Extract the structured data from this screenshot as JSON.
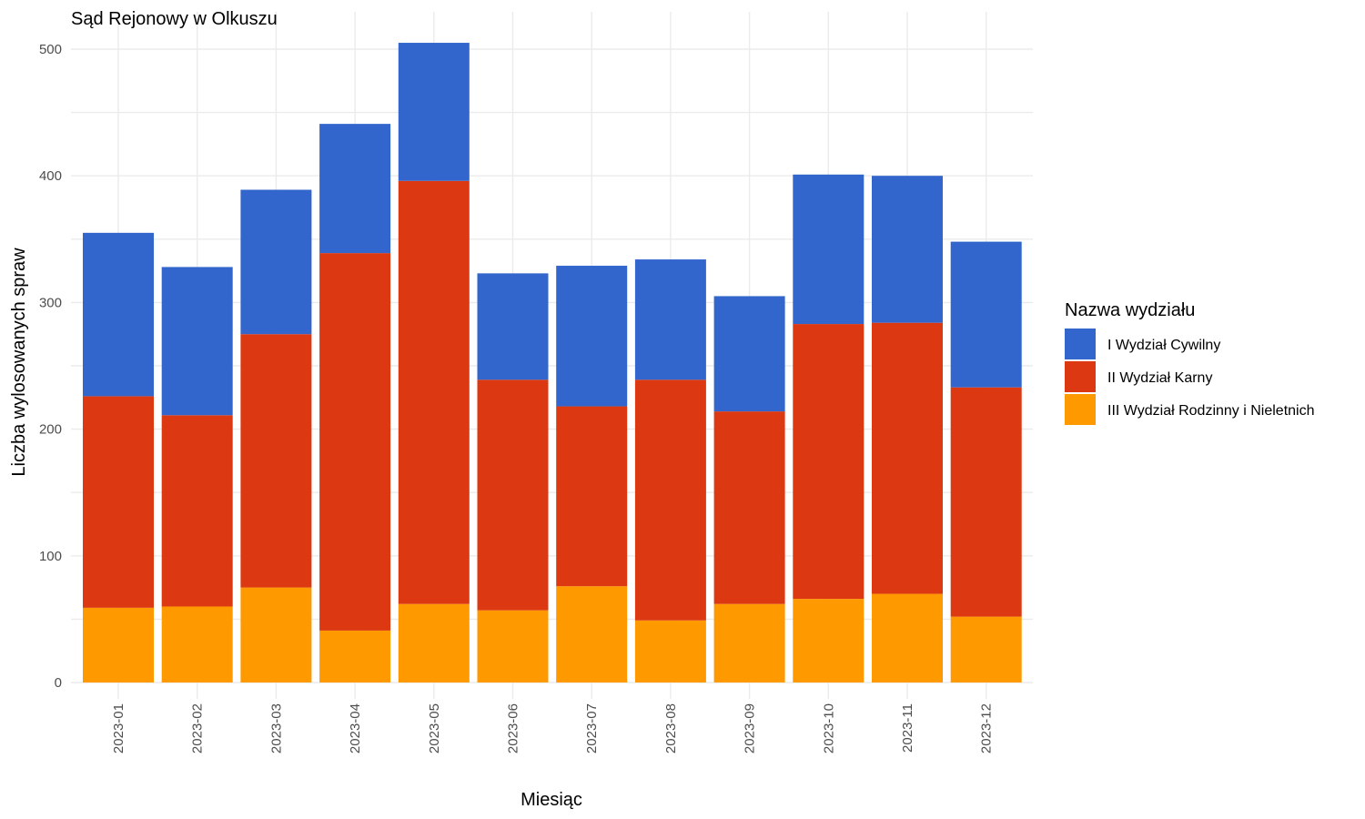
{
  "chart_data": {
    "type": "bar",
    "stacked": true,
    "title": "Sąd Rejonowy w Olkuszu",
    "xlabel": "Miesiąc",
    "ylabel": "Liczba wylosowanych spraw",
    "ylim": [
      0,
      520
    ],
    "yticks": [
      0,
      100,
      200,
      300,
      400,
      500
    ],
    "grid": true,
    "legend": {
      "title": "Nazwa wydziału",
      "position": "right"
    },
    "categories": [
      "2023-01",
      "2023-02",
      "2023-03",
      "2023-04",
      "2023-05",
      "2023-06",
      "2023-07",
      "2023-08",
      "2023-09",
      "2023-10",
      "2023-11",
      "2023-12"
    ],
    "series": [
      {
        "name": "III Wydział Rodzinny i Nieletnich",
        "color": "#FF9900",
        "values": [
          59,
          60,
          75,
          41,
          62,
          57,
          76,
          49,
          62,
          66,
          70,
          52
        ]
      },
      {
        "name": "II Wydział Karny",
        "color": "#DC3912",
        "values": [
          167,
          151,
          200,
          298,
          334,
          182,
          142,
          190,
          152,
          217,
          214,
          181
        ]
      },
      {
        "name": "I Wydział Cywilny",
        "color": "#3366CC",
        "values": [
          129,
          117,
          114,
          102,
          109,
          84,
          111,
          95,
          91,
          118,
          116,
          115
        ]
      }
    ],
    "legend_order": [
      "I Wydział Cywilny",
      "II Wydział Karny",
      "III Wydział Rodzinny i Nieletnich"
    ]
  }
}
